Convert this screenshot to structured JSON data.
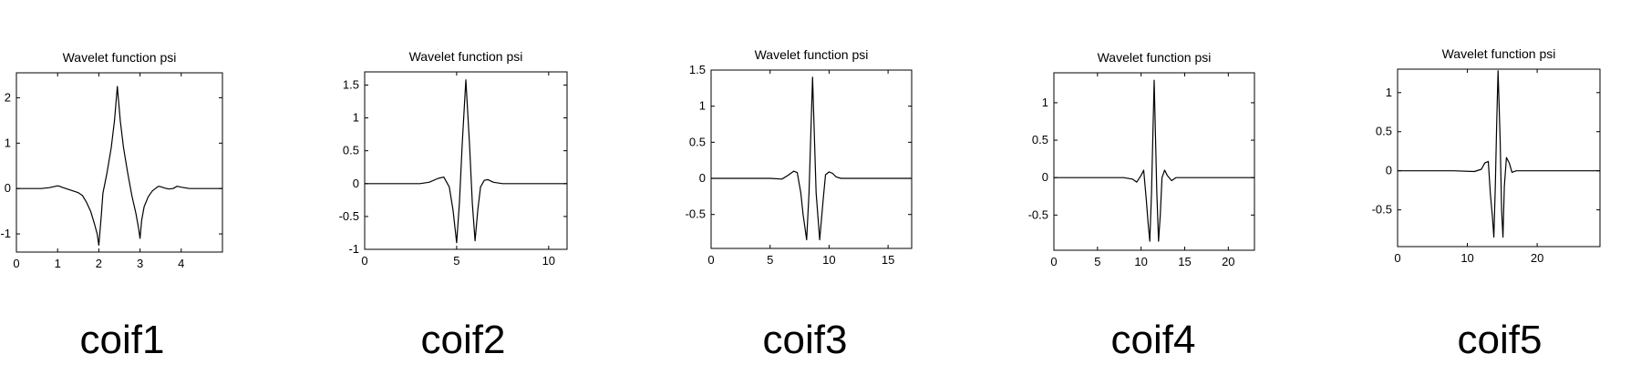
{
  "chart_data": [
    {
      "type": "line",
      "title": "Wavelet function psi",
      "caption": "coif1",
      "xlim": [
        0,
        5
      ],
      "ylim": [
        -1.4,
        2.55
      ],
      "xticks": [
        0,
        1,
        2,
        3,
        4
      ],
      "yticks": [
        -1,
        0,
        1,
        2
      ],
      "series": [
        {
          "x": [
            0,
            0.3,
            0.6,
            0.8,
            0.9,
            1.0,
            1.05,
            1.1,
            1.2,
            1.3,
            1.4,
            1.5,
            1.55,
            1.6,
            1.7,
            1.8,
            1.9,
            1.96,
            2.0,
            2.06,
            2.1,
            2.2,
            2.3,
            2.38,
            2.45,
            2.52,
            2.6,
            2.7,
            2.8,
            2.9,
            2.96,
            3.0,
            3.04,
            3.1,
            3.2,
            3.3,
            3.4,
            3.45,
            3.5,
            3.6,
            3.7,
            3.8,
            3.9,
            4.0,
            4.2,
            4.5,
            5.0
          ],
          "y": [
            0,
            0,
            0,
            0.02,
            0.04,
            0.06,
            0.05,
            0.03,
            0.0,
            -0.03,
            -0.06,
            -0.09,
            -0.12,
            -0.15,
            -0.3,
            -0.5,
            -0.8,
            -1.0,
            -1.25,
            -0.6,
            -0.1,
            0.35,
            0.9,
            1.5,
            2.25,
            1.5,
            0.9,
            0.35,
            -0.15,
            -0.55,
            -0.85,
            -1.1,
            -0.7,
            -0.4,
            -0.18,
            -0.05,
            0.02,
            0.05,
            0.04,
            0.01,
            -0.01,
            0.0,
            0.05,
            0.03,
            0.0,
            0.0,
            0.0
          ]
        }
      ]
    },
    {
      "type": "line",
      "title": "Wavelet function psi",
      "caption": "coif2",
      "xlim": [
        0,
        11
      ],
      "ylim": [
        -1,
        1.7
      ],
      "xticks": [
        0,
        5,
        10
      ],
      "yticks": [
        -1,
        -0.5,
        0,
        0.5,
        1,
        1.5
      ],
      "series": [
        {
          "x": [
            0,
            1,
            2,
            3,
            3.5,
            4,
            4.3,
            4.6,
            4.8,
            5.0,
            5.15,
            5.3,
            5.5,
            5.7,
            5.85,
            6.0,
            6.15,
            6.3,
            6.5,
            6.7,
            7.0,
            7.5,
            8,
            9,
            11
          ],
          "y": [
            0,
            0,
            0,
            0.0,
            0.02,
            0.08,
            0.1,
            -0.05,
            -0.4,
            -0.9,
            -0.3,
            0.6,
            1.58,
            0.6,
            -0.3,
            -0.87,
            -0.4,
            -0.05,
            0.05,
            0.06,
            0.02,
            0.0,
            0,
            0,
            0
          ]
        }
      ]
    },
    {
      "type": "line",
      "title": "Wavelet function psi",
      "caption": "coif3",
      "xlim": [
        0,
        17
      ],
      "ylim": [
        -0.97,
        1.5
      ],
      "xticks": [
        0,
        5,
        10,
        15
      ],
      "yticks": [
        -0.5,
        0,
        0.5,
        1,
        1.5
      ],
      "series": [
        {
          "x": [
            0,
            3,
            5,
            6,
            6.5,
            7,
            7.3,
            7.6,
            7.8,
            8.1,
            8.3,
            8.6,
            8.9,
            9.2,
            9.5,
            9.7,
            10,
            10.3,
            10.6,
            11,
            12,
            14,
            17
          ],
          "y": [
            0,
            0,
            0,
            -0.01,
            0.04,
            0.1,
            0.08,
            -0.2,
            -0.5,
            -0.85,
            -0.2,
            1.4,
            -0.2,
            -0.85,
            -0.3,
            0.05,
            0.09,
            0.07,
            0.02,
            0.0,
            0,
            0,
            0
          ]
        }
      ]
    },
    {
      "type": "line",
      "title": "Wavelet function psi",
      "caption": "coif4",
      "xlim": [
        0,
        23
      ],
      "ylim": [
        -0.97,
        1.4
      ],
      "xticks": [
        0,
        5,
        10,
        15,
        20
      ],
      "yticks": [
        -0.5,
        0,
        0.5,
        1
      ],
      "series": [
        {
          "x": [
            0,
            5,
            8,
            9,
            9.5,
            10,
            10.3,
            10.6,
            10.8,
            11.0,
            11.2,
            11.5,
            11.8,
            12.0,
            12.2,
            12.4,
            12.7,
            13,
            13.5,
            14,
            15,
            18,
            23
          ],
          "y": [
            0,
            0,
            0,
            -0.02,
            -0.06,
            0.03,
            0.1,
            -0.3,
            -0.6,
            -0.85,
            -0.2,
            1.3,
            -0.2,
            -0.85,
            -0.5,
            0.0,
            0.1,
            0.03,
            -0.04,
            0.0,
            0,
            0,
            0
          ]
        }
      ]
    },
    {
      "type": "line",
      "title": "Wavelet function psi",
      "caption": "coif5",
      "xlim": [
        0,
        29
      ],
      "ylim": [
        -0.97,
        1.3
      ],
      "xticks": [
        0,
        10,
        20
      ],
      "yticks": [
        -0.5,
        0,
        0.5,
        1
      ],
      "series": [
        {
          "x": [
            0,
            8,
            11,
            12,
            12.5,
            13,
            13.3,
            13.6,
            13.8,
            14.0,
            14.2,
            14.4,
            14.7,
            14.9,
            15.1,
            15.3,
            15.6,
            16,
            16.4,
            17,
            18,
            22,
            29
          ],
          "y": [
            0,
            0,
            -0.01,
            0.02,
            0.1,
            0.12,
            -0.3,
            -0.6,
            -0.85,
            -0.2,
            0.6,
            1.28,
            0.4,
            -0.5,
            -0.85,
            -0.2,
            0.17,
            0.1,
            -0.02,
            0.0,
            0,
            0,
            0
          ]
        }
      ]
    }
  ]
}
